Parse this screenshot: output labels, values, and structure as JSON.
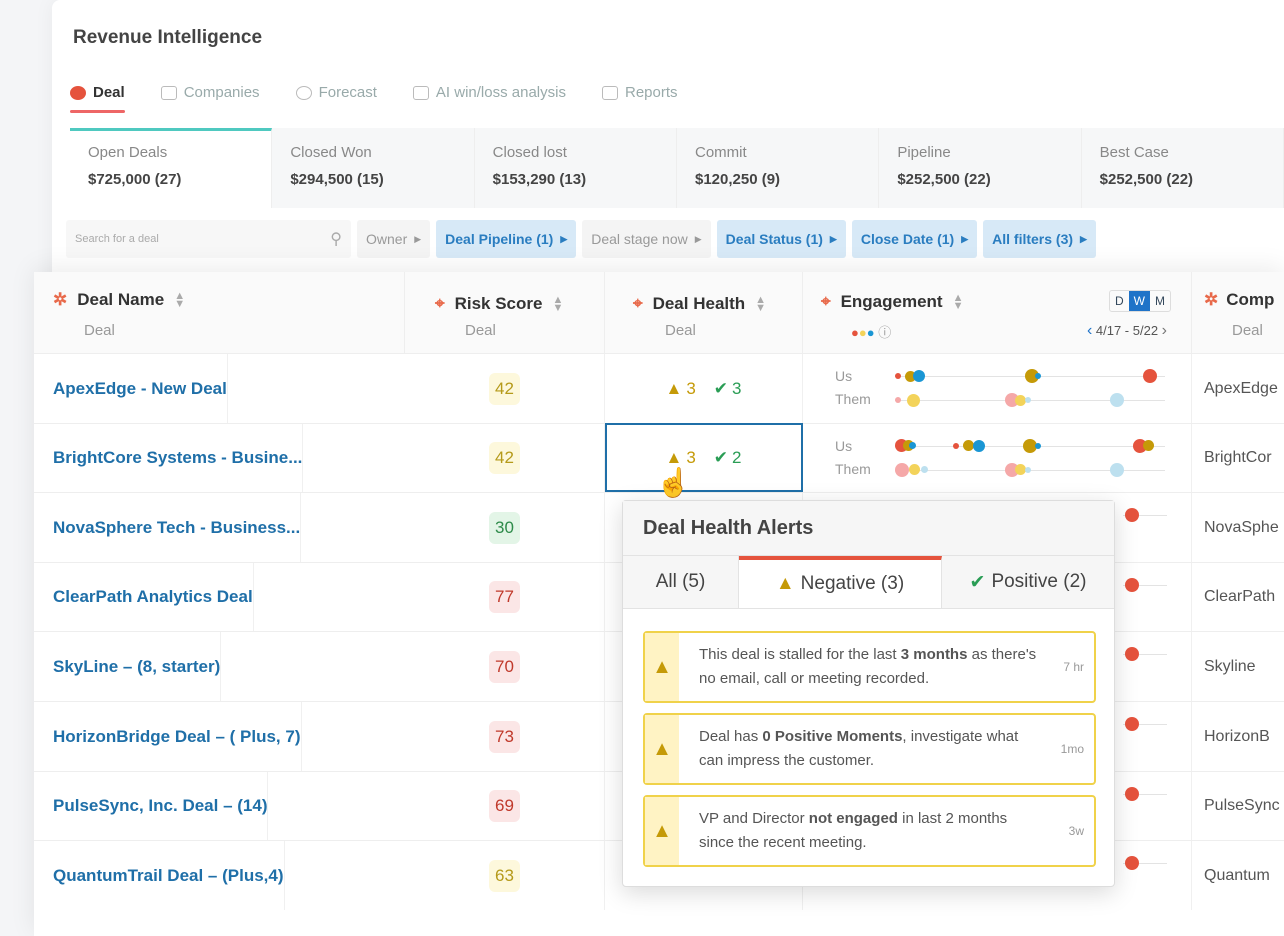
{
  "app": {
    "title": "Revenue Intelligence"
  },
  "tabs": [
    {
      "label": "Deal",
      "active": true,
      "icon": "deal-icon"
    },
    {
      "label": "Companies",
      "icon": "building-icon"
    },
    {
      "label": "Forecast",
      "icon": "clock-icon"
    },
    {
      "label": "AI win/loss analysis",
      "icon": "sort-icon"
    },
    {
      "label": "Reports",
      "icon": "chart-icon"
    }
  ],
  "summary": [
    {
      "label": "Open Deals",
      "value": "$725,000 (27)"
    },
    {
      "label": "Closed Won",
      "value": "$294,500 (15)"
    },
    {
      "label": "Closed lost",
      "value": "$153,290 (13)"
    },
    {
      "label": "Commit",
      "value": "$120,250 (9)"
    },
    {
      "label": "Pipeline",
      "value": "$252,500 (22)"
    },
    {
      "label": "Best Case",
      "value": "$252,500 (22)"
    }
  ],
  "filters": {
    "search_placeholder": "Search for a deal",
    "items": [
      {
        "label": "Owner",
        "active": false
      },
      {
        "label": "Deal Pipeline (1)",
        "active": true
      },
      {
        "label": "Deal stage now",
        "active": false
      },
      {
        "label": "Deal Status (1)",
        "active": true
      },
      {
        "label": "Close Date (1)",
        "active": true
      },
      {
        "label": "All filters (3)",
        "active": true
      }
    ]
  },
  "columns": {
    "deal_name": {
      "title": "Deal Name",
      "sub": "Deal"
    },
    "risk": {
      "title": "Risk Score",
      "sub": "Deal"
    },
    "health": {
      "title": "Deal Health",
      "sub": "Deal"
    },
    "engagement": {
      "title": "Engagement",
      "periods": [
        "D",
        "W",
        "M"
      ],
      "selected_period": "W",
      "range": "4/17 - 5/22"
    },
    "company": {
      "title": "Comp",
      "sub": "Deal"
    }
  },
  "engagement_labels": {
    "us": "Us",
    "them": "Them"
  },
  "colors": {
    "link": "#1f6fa8",
    "warning": "#c59a08",
    "positive": "#2a9d55",
    "risk_high": "#c0392b",
    "risk_medium": "#b59a1a",
    "risk_low": "#2e8b4a"
  },
  "rows": [
    {
      "name": "ApexEdge - New Deal",
      "risk": "42",
      "level": "medium",
      "neg": "3",
      "pos": "3",
      "company": "ApexEdge"
    },
    {
      "name": "BrightCore Systems - Busine...",
      "risk": "42",
      "level": "medium",
      "neg": "3",
      "pos": "2",
      "company": "BrightCor"
    },
    {
      "name": "NovaSphere Tech - Business...",
      "risk": "30",
      "level": "low",
      "company": "NovaSphe"
    },
    {
      "name": "ClearPath Analytics Deal",
      "risk": "77",
      "level": "high",
      "company": "ClearPath"
    },
    {
      "name": "SkyLine – (8, starter)",
      "risk": "70",
      "level": "high",
      "company": "Skyline"
    },
    {
      "name": "HorizonBridge Deal – ( Plus, 7)",
      "risk": "73",
      "level": "high",
      "company": "HorizonB"
    },
    {
      "name": "PulseSync, Inc. Deal – (14)",
      "risk": "69",
      "level": "high",
      "company": "PulseSync"
    },
    {
      "name": "QuantumTrail Deal – (Plus,4)",
      "risk": "63",
      "level": "medium",
      "company": "Quantum"
    }
  ],
  "popup": {
    "title": "Deal Health Alerts",
    "tabs": [
      {
        "label": "All (5)"
      },
      {
        "label": "Negative (3)",
        "active": true
      },
      {
        "label": "Positive (2)"
      }
    ],
    "alerts": [
      {
        "pre": "This deal is stalled for the last ",
        "bold": "3 months",
        "post": " as there's no email, call or meeting recorded.",
        "time": "7 hr"
      },
      {
        "pre": "Deal has ",
        "bold": "0 Positive Moments",
        "post": ", investigate what can impress the customer.",
        "time": "1mo"
      },
      {
        "pre": "VP and Director ",
        "bold": "not engaged",
        "post": " in last 2 months since the recent meeting.",
        "time": "3w"
      }
    ]
  }
}
